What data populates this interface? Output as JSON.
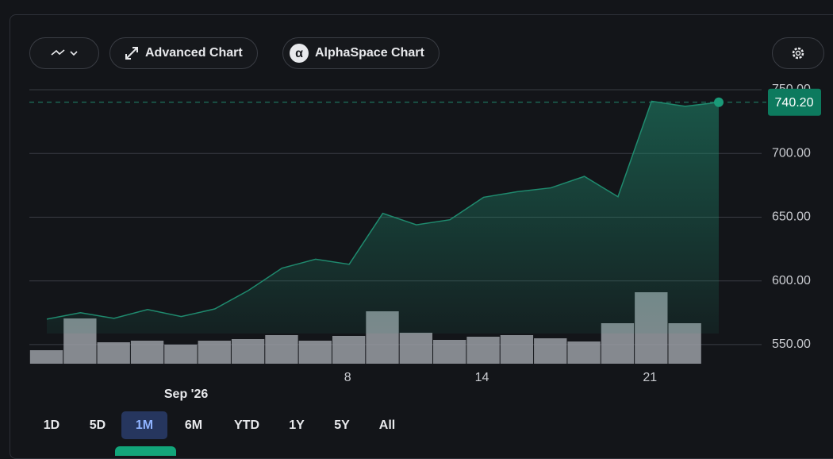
{
  "toolbar": {
    "buttons": [
      "Advanced Chart",
      "AlphaSpace Chart"
    ]
  },
  "ranges": {
    "options": [
      "1D",
      "5D",
      "1M",
      "6M",
      "YTD",
      "1Y",
      "5Y",
      "All"
    ],
    "selected_index": 2
  },
  "chart_data": {
    "type": "area",
    "categories": [
      null,
      null,
      null,
      null,
      null,
      null,
      null,
      null,
      null,
      "8",
      null,
      null,
      null,
      "14",
      null,
      null,
      null,
      null,
      "21",
      null,
      null
    ],
    "month_label": "Sep '26",
    "values": [
      570,
      575,
      570.6,
      577.5,
      572,
      578,
      592.5,
      610,
      617,
      613,
      653,
      644,
      648,
      665.6,
      670,
      673,
      682,
      666,
      741,
      737,
      740.2
    ],
    "value_labels": [
      null,
      null,
      null,
      null,
      null,
      null,
      null,
      null,
      null,
      null,
      null,
      null,
      null,
      null,
      null,
      null,
      null,
      null,
      null,
      null,
      "740.20"
    ],
    "volume": [
      17,
      57,
      27,
      29,
      24,
      29,
      31,
      36,
      29,
      35,
      66,
      39,
      30,
      34,
      36,
      32,
      28,
      51,
      90,
      51,
      null
    ],
    "color": "#1f8a6e",
    "ylim": [
      535,
      755
    ],
    "yticks": [
      {
        "value": 550,
        "label": "550.00"
      },
      {
        "value": 600,
        "label": "600.00"
      },
      {
        "value": 650,
        "label": "650.00"
      },
      {
        "value": 700,
        "label": "700.00"
      },
      {
        "value": 750,
        "label": "750.00"
      }
    ],
    "grid": true
  }
}
